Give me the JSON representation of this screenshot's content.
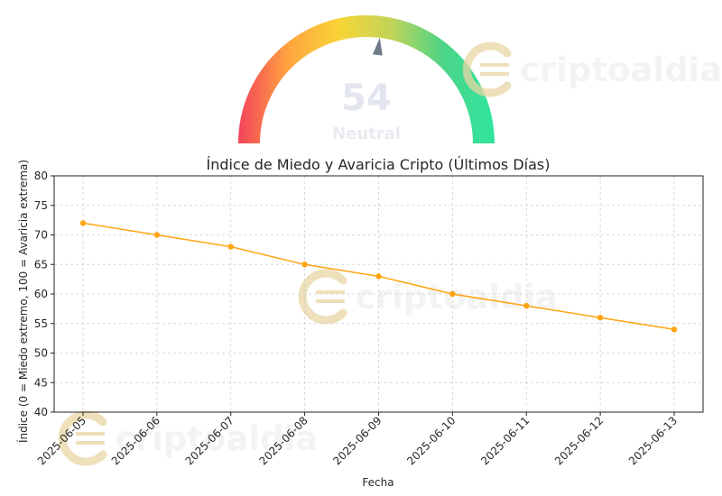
{
  "gauge": {
    "value": "54",
    "label": "Neutral",
    "level": 54,
    "colors": [
      "#f2435a",
      "#ffa63f",
      "#f7d536",
      "#c0d45a",
      "#4cd488",
      "#2ee59d"
    ],
    "needle_color": "#6f7988",
    "value_color": "#e3e5ef"
  },
  "watermark": {
    "text": "criptoaldia",
    "color": "#e8d6a3"
  },
  "chart_data": {
    "type": "line",
    "title": "Índice de Miedo y Avaricia Cripto (Últimos Días)",
    "xlabel": "Fecha",
    "ylabel": "Índice (0 = Miedo extremo, 100 = Avaricia extrema)",
    "categories": [
      "2025-06-05",
      "2025-06-06",
      "2025-06-07",
      "2025-06-08",
      "2025-06-09",
      "2025-06-10",
      "2025-06-11",
      "2025-06-12",
      "2025-06-13"
    ],
    "series": [
      {
        "values": [
          72,
          70,
          68,
          65,
          63,
          60,
          58,
          56,
          54
        ],
        "color": "#ffa40f"
      }
    ],
    "ylim": [
      40,
      80
    ],
    "yticks": [
      40,
      45,
      50,
      55,
      60,
      65,
      70,
      75,
      80
    ],
    "grid": true,
    "legend": "none"
  }
}
